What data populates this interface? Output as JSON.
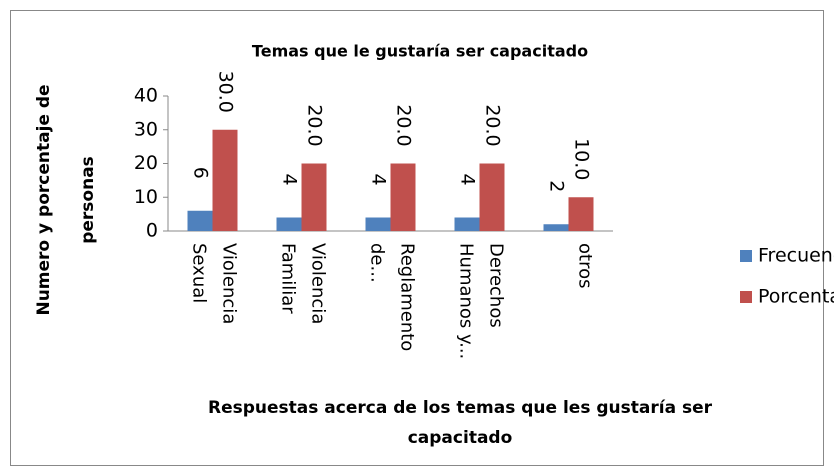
{
  "chart_data": {
    "type": "bar",
    "title": "Temas que le gustaría ser capacitado",
    "ylabel": [
      "Numero y porcentaje de",
      "personas"
    ],
    "xlabel": [
      "Respuestas acerca de los temas que les gustaría ser",
      "capacitado"
    ],
    "categories": [
      "Violencia Sexual",
      "Violencia Familiar",
      "Reglamento de...",
      "Derechos Humanos y...",
      "otros"
    ],
    "series": [
      {
        "name": "Frecuencia",
        "color": "#4f81bd",
        "values": [
          6,
          4,
          4,
          4,
          2
        ]
      },
      {
        "name": "Porcentaje %",
        "color": "#c0504d",
        "values": [
          30,
          20,
          20,
          20,
          10
        ],
        "value_labels": [
          "30.0",
          "20.0",
          "20.0",
          "20.0",
          "10.0"
        ]
      }
    ],
    "ylim": [
      0,
      40
    ],
    "yticks": [
      0,
      10,
      20,
      30,
      40
    ],
    "grid": false,
    "legend": "right"
  }
}
